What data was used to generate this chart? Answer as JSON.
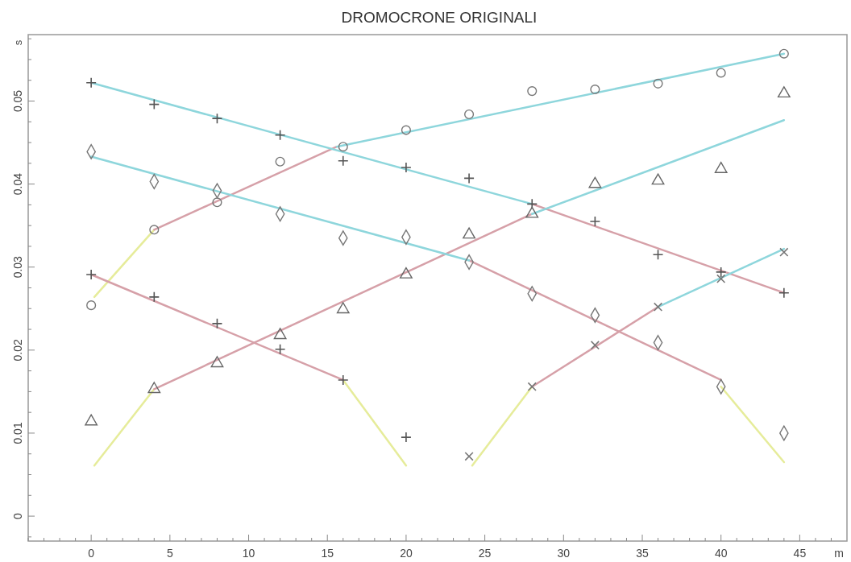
{
  "chart_data": {
    "type": "scatter",
    "title": "DROMOCRONE ORIGINALI",
    "xlabel": "m",
    "ylabel": "s",
    "xlim": [
      -4,
      48
    ],
    "ylim": [
      -0.003,
      0.058
    ],
    "xticks": [
      {
        "value": -4,
        "label": null
      },
      {
        "value": -3,
        "label": null
      },
      {
        "value": -2,
        "label": null
      },
      {
        "value": -1,
        "label": null
      },
      0,
      {
        "value": 1,
        "label": null
      },
      {
        "value": 2,
        "label": null
      },
      {
        "value": 3,
        "label": null
      },
      {
        "value": 4,
        "label": null
      },
      5,
      {
        "value": 6,
        "label": null
      },
      {
        "value": 7,
        "label": null
      },
      {
        "value": 8,
        "label": null
      },
      {
        "value": 9,
        "label": null
      },
      10,
      {
        "value": 11,
        "label": null
      },
      {
        "value": 12,
        "label": null
      },
      {
        "value": 13,
        "label": null
      },
      {
        "value": 14,
        "label": null
      },
      15,
      {
        "value": 16,
        "label": null
      },
      {
        "value": 17,
        "label": null
      },
      {
        "value": 18,
        "label": null
      },
      {
        "value": 19,
        "label": null
      },
      20,
      {
        "value": 21,
        "label": null
      },
      {
        "value": 22,
        "label": null
      },
      {
        "value": 23,
        "label": null
      },
      {
        "value": 24,
        "label": null
      },
      25,
      {
        "value": 26,
        "label": null
      },
      {
        "value": 27,
        "label": null
      },
      {
        "value": 28,
        "label": null
      },
      {
        "value": 29,
        "label": null
      },
      30,
      {
        "value": 31,
        "label": null
      },
      {
        "value": 32,
        "label": null
      },
      {
        "value": 33,
        "label": null
      },
      {
        "value": 34,
        "label": null
      },
      35,
      {
        "value": 36,
        "label": null
      },
      {
        "value": 37,
        "label": null
      },
      {
        "value": 38,
        "label": null
      },
      {
        "value": 39,
        "label": null
      },
      40,
      {
        "value": 41,
        "label": null
      },
      {
        "value": 42,
        "label": null
      },
      {
        "value": 43,
        "label": null
      },
      {
        "value": 44,
        "label": null
      },
      45,
      {
        "value": 46,
        "label": null
      },
      {
        "value": 47,
        "label": null
      }
    ],
    "yticks": [
      {
        "value": -0.0025,
        "label": null
      },
      0,
      {
        "value": 0.0025,
        "label": null
      },
      {
        "value": 0.005,
        "label": null
      },
      {
        "value": 0.0075,
        "label": null
      },
      0.01,
      {
        "value": 0.0125,
        "label": null
      },
      {
        "value": 0.015,
        "label": null
      },
      {
        "value": 0.0175,
        "label": null
      },
      0.02,
      {
        "value": 0.0225,
        "label": null
      },
      {
        "value": 0.025,
        "label": null
      },
      {
        "value": 0.0275,
        "label": null
      },
      0.03,
      {
        "value": 0.0325,
        "label": null
      },
      {
        "value": 0.035,
        "label": null
      },
      {
        "value": 0.0375,
        "label": null
      },
      0.04,
      {
        "value": 0.0425,
        "label": null
      },
      {
        "value": 0.045,
        "label": null
      },
      {
        "value": 0.0475,
        "label": null
      },
      0.05,
      {
        "value": 0.0525,
        "label": null
      },
      {
        "value": 0.055,
        "label": null
      },
      {
        "value": 0.0575,
        "label": null
      }
    ],
    "line_style": "solid",
    "series": [
      {
        "type": "line",
        "color": "#e6ec9a",
        "x": [
          0.2,
          4
        ],
        "values": [
          0.0061,
          0.0153
        ]
      },
      {
        "type": "line",
        "color": "#e6ec9a",
        "x": [
          0.2,
          4
        ],
        "values": [
          0.0264,
          0.0345
        ]
      },
      {
        "type": "line",
        "color": "#e6ec9a",
        "x": [
          16,
          20
        ],
        "values": [
          0.0164,
          0.0061
        ]
      },
      {
        "type": "line",
        "color": "#e6ec9a",
        "x": [
          24.2,
          28
        ],
        "values": [
          0.0061,
          0.0156
        ]
      },
      {
        "type": "line",
        "color": "#e6ec9a",
        "x": [
          40,
          44
        ],
        "values": [
          0.0156,
          0.0065
        ]
      },
      {
        "type": "line",
        "color": "#d6a0a8",
        "x": [
          4,
          15.6
        ],
        "values": [
          0.0345,
          0.0445
        ]
      },
      {
        "type": "line",
        "color": "#d6a0a8",
        "x": [
          0,
          16
        ],
        "values": [
          0.0291,
          0.0164
        ]
      },
      {
        "type": "line",
        "color": "#d6a0a8",
        "x": [
          4,
          28
        ],
        "values": [
          0.0153,
          0.0364
        ]
      },
      {
        "type": "line",
        "color": "#d6a0a8",
        "x": [
          24,
          40
        ],
        "values": [
          0.0308,
          0.0164
        ]
      },
      {
        "type": "line",
        "color": "#d6a0a8",
        "x": [
          28,
          44
        ],
        "values": [
          0.0376,
          0.0269
        ]
      },
      {
        "type": "line",
        "color": "#d6a0a8",
        "x": [
          28,
          36
        ],
        "values": [
          0.0156,
          0.0252
        ]
      },
      {
        "type": "line",
        "color": "#8ed6dc",
        "x": [
          0,
          28
        ],
        "values": [
          0.0522,
          0.0376
        ]
      },
      {
        "type": "line",
        "color": "#8ed6dc",
        "x": [
          0,
          24
        ],
        "values": [
          0.0433,
          0.0308
        ]
      },
      {
        "type": "line",
        "color": "#8ed6dc",
        "x": [
          15.6,
          44
        ],
        "values": [
          0.0445,
          0.0557
        ]
      },
      {
        "type": "line",
        "color": "#8ed6dc",
        "x": [
          28,
          44
        ],
        "values": [
          0.0364,
          0.0477
        ]
      },
      {
        "type": "line",
        "color": "#8ed6dc",
        "x": [
          36,
          44
        ],
        "values": [
          0.0252,
          0.0322
        ]
      },
      {
        "marker": "cross",
        "color": "#555555",
        "x": [
          0,
          4,
          8,
          12,
          16,
          20,
          24,
          28,
          32,
          36,
          40,
          44
        ],
        "values": [
          0.0522,
          0.0496,
          0.0479,
          0.0459,
          0.0428,
          0.042,
          0.0407,
          0.0376,
          0.0355,
          0.0315,
          0.0294,
          0.0269
        ]
      },
      {
        "marker": "cross",
        "color": "#555555",
        "x": [
          0,
          4,
          8,
          12,
          16,
          20
        ],
        "values": [
          0.0291,
          0.0264,
          0.0232,
          0.0201,
          0.0164,
          0.0095
        ]
      },
      {
        "marker": "circle",
        "color": "#777777",
        "x": [
          0,
          4,
          8,
          12,
          16,
          20,
          24,
          28,
          32,
          36,
          40,
          44
        ],
        "values": [
          0.0254,
          0.0345,
          0.0378,
          0.0427,
          0.0445,
          0.0465,
          0.0484,
          0.0512,
          0.0514,
          0.0521,
          0.0534,
          0.0557
        ]
      },
      {
        "marker": "diamond",
        "color": "#777777",
        "x": [
          0,
          4,
          8,
          12,
          16,
          20,
          24,
          28,
          32,
          36,
          40,
          44
        ],
        "values": [
          0.0439,
          0.0403,
          0.0392,
          0.0364,
          0.0335,
          0.0336,
          0.0306,
          0.0268,
          0.0242,
          0.0209,
          0.0156,
          0.01
        ]
      },
      {
        "marker": "triangle",
        "color": "#666666",
        "x": [
          0,
          4,
          8,
          12,
          16,
          20,
          24,
          28,
          32,
          36,
          40,
          44
        ],
        "values": [
          0.0114,
          0.0153,
          0.0184,
          0.0218,
          0.0249,
          0.0291,
          0.0339,
          0.0364,
          0.04,
          0.0404,
          0.0418,
          0.0509
        ]
      },
      {
        "marker": "x",
        "color": "#777777",
        "x": [
          24,
          28,
          32,
          36,
          40,
          44
        ],
        "values": [
          0.0072,
          0.0156,
          0.0206,
          0.0252,
          0.0286,
          0.0318
        ]
      }
    ]
  }
}
